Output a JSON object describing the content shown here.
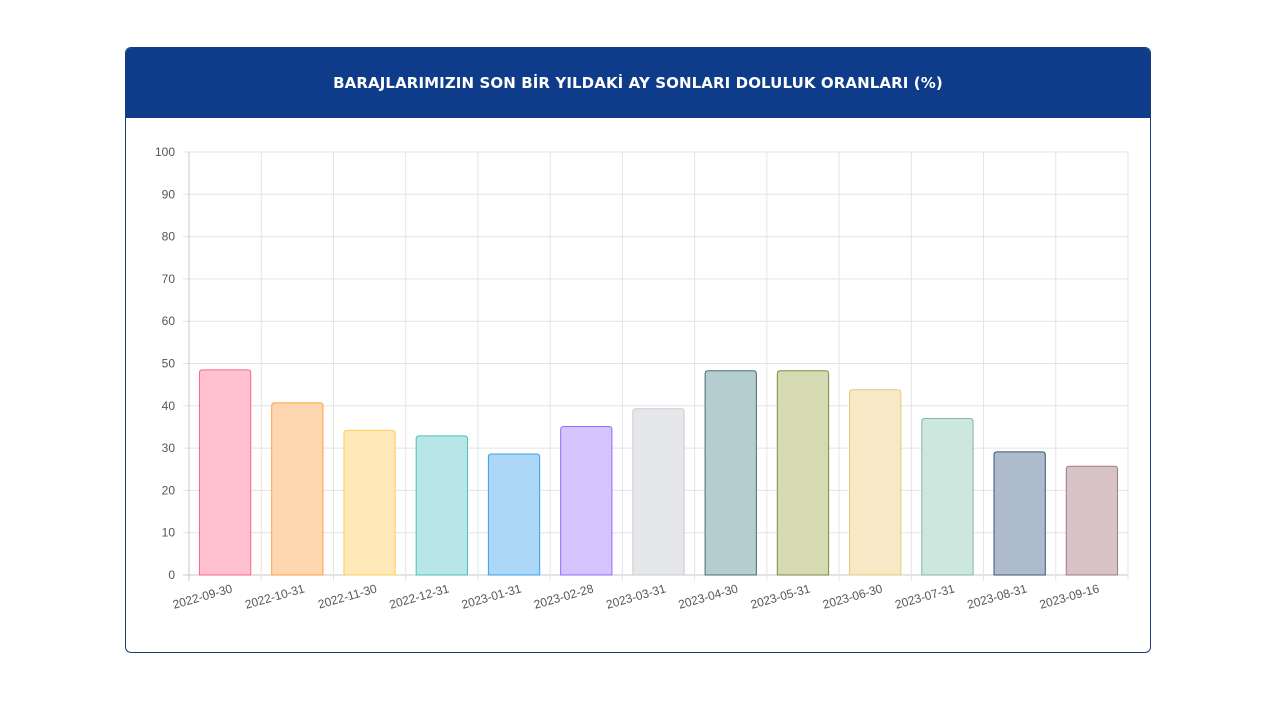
{
  "chart_data": {
    "type": "bar",
    "title": "BARAJLARIMIZIN SON BİR YILDAKİ AY SONLARI DOLULUK ORANLARI (%)",
    "xlabel": "",
    "ylabel": "",
    "ylim": [
      0,
      100
    ],
    "yticks": [
      "0",
      "10",
      "20",
      "30",
      "40",
      "50",
      "60",
      "70",
      "80",
      "90",
      "100"
    ],
    "grid": true,
    "categories": [
      "2022-09-30",
      "2022-10-31",
      "2022-11-30",
      "2022-12-31",
      "2023-01-31",
      "2023-02-28",
      "2023-03-31",
      "2023-04-30",
      "2023-05-31",
      "2023-06-30",
      "2023-07-31",
      "2023-08-31",
      "2023-09-16"
    ],
    "values": [
      48.5,
      40.7,
      34.2,
      32.9,
      28.6,
      35.1,
      39.3,
      48.3,
      48.3,
      43.8,
      37.0,
      29.1,
      25.7
    ],
    "bar_fills": [
      "#ffc0cf",
      "#fed6b0",
      "#ffe9b8",
      "#b8e5e6",
      "#acd7f6",
      "#d5c5ff",
      "#e6e7ea",
      "#b4cdd1",
      "#d5dab3",
      "#f7e8c6",
      "#cde6de",
      "#aebbcc",
      "#d7c2c7"
    ],
    "bar_strokes": [
      "#ff6384",
      "#ff9f40",
      "#ffcd56",
      "#4bc0c0",
      "#36a2eb",
      "#9966ff",
      "#c9cbcf",
      "#4a6b73",
      "#7d8a3f",
      "#e8c77d",
      "#7fb8a6",
      "#3d5478",
      "#a27a84"
    ]
  }
}
